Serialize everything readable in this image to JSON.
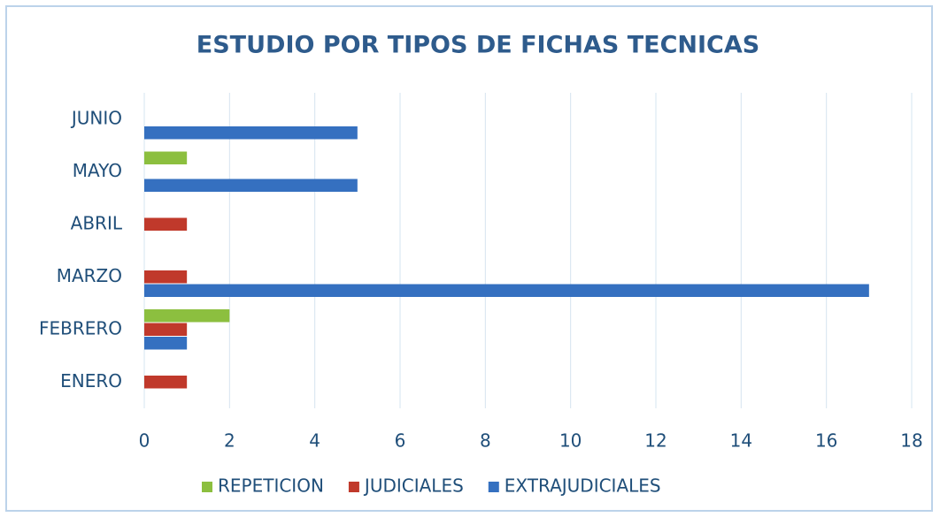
{
  "chart_data": {
    "type": "bar",
    "orientation": "horizontal",
    "title": "ESTUDIO POR TIPOS DE FICHAS TECNICAS",
    "categories": [
      "ENERO",
      "FEBRERO",
      "MARZO",
      "ABRIL",
      "MAYO",
      "JUNIO"
    ],
    "series": [
      {
        "name": "REPETICION",
        "color": "#8cbf3f",
        "values": [
          0,
          2,
          0,
          0,
          1,
          0
        ]
      },
      {
        "name": "JUDICIALES",
        "color": "#c0392b",
        "values": [
          1,
          1,
          1,
          1,
          0,
          0
        ]
      },
      {
        "name": "EXTRAJUDICIALES",
        "color": "#3570c0",
        "values": [
          0,
          1,
          17,
          0,
          5,
          5
        ]
      }
    ],
    "xlim": [
      0,
      18
    ],
    "xticks": [
      0,
      2,
      4,
      6,
      8,
      10,
      12,
      14,
      16,
      18
    ],
    "grid": true,
    "legend": "bottom"
  }
}
